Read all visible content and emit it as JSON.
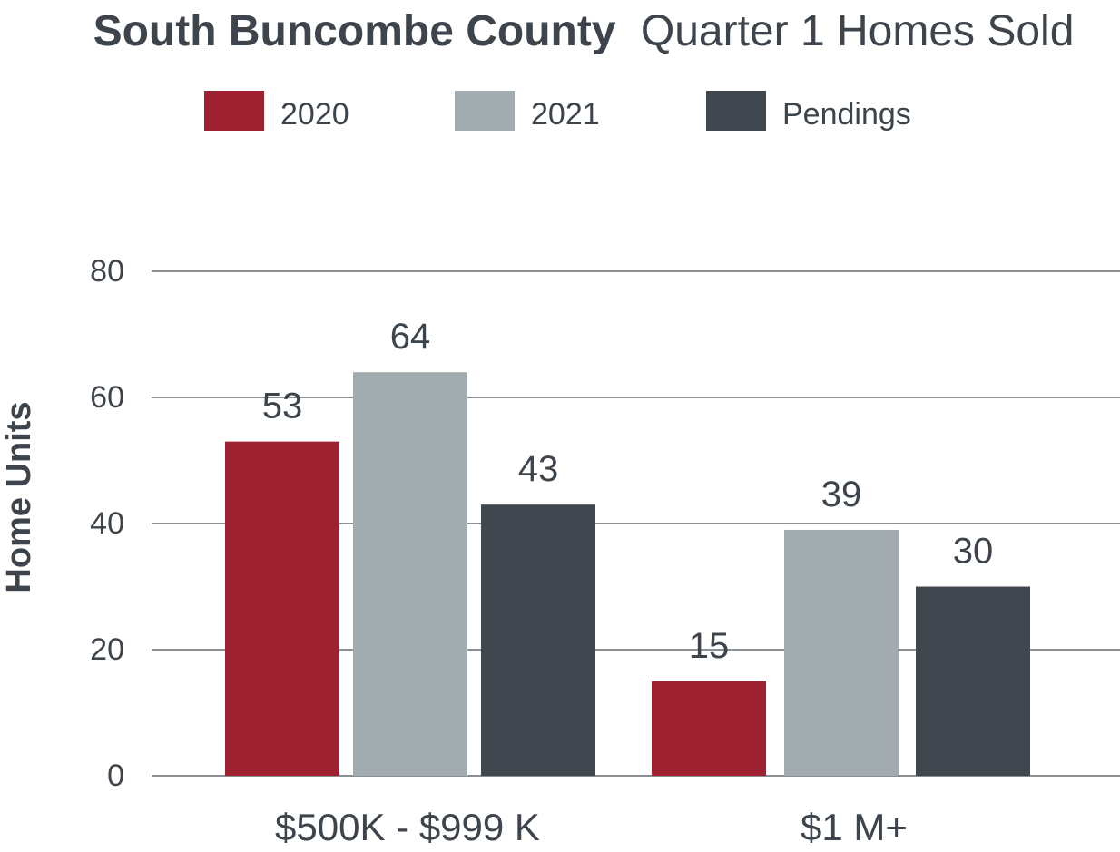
{
  "colors": {
    "text": "#3d444b",
    "grid": "#8a8f93",
    "series_2020": "#9e2132",
    "series_2021": "#a2abb0",
    "series_pendings": "#40474e"
  },
  "chart_data": {
    "type": "bar",
    "title_bold": "South Buncombe County",
    "title_regular": "Quarter 1 Homes Sold",
    "xlabel": "",
    "ylabel": "Home Units",
    "ylim": [
      0,
      80
    ],
    "yticks": [
      0,
      20,
      40,
      60,
      80
    ],
    "grid": true,
    "legend_position": "top",
    "categories": [
      "$500K - $999 K",
      "$1 M+"
    ],
    "series": [
      {
        "name": "2020",
        "values": [
          53,
          15
        ],
        "color": "#9e2132"
      },
      {
        "name": "2021",
        "values": [
          64,
          39
        ],
        "color": "#a2abb0"
      },
      {
        "name": "Pendings",
        "values": [
          43,
          30
        ],
        "color": "#40474e"
      }
    ]
  }
}
